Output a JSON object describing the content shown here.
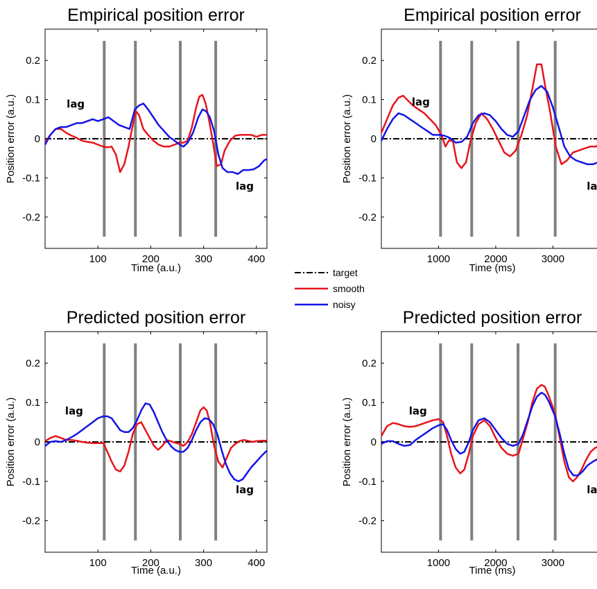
{
  "legend": {
    "entries": [
      {
        "label": "target",
        "color": "#000000",
        "dash": "dashdot"
      },
      {
        "label": "smooth",
        "color": "#e8141b"
      },
      {
        "label": "noisy",
        "color": "#1414e6"
      }
    ]
  },
  "chart_data": [
    {
      "type": "line",
      "title": "Empirical position error",
      "xlabel": "Time (a.u.)",
      "ylabel": "Position error (a.u.)",
      "xlim": [
        0,
        420
      ],
      "ylim": [
        -0.28,
        0.28
      ],
      "xticks": [
        100,
        200,
        300,
        400
      ],
      "yticks": [
        -0.2,
        -0.1,
        0,
        0.1,
        0.2
      ],
      "ytick_labels": [
        "-0.2",
        "-0.1",
        "0",
        "0.1",
        "0.2"
      ],
      "vlines": [
        112,
        171,
        256,
        323
      ],
      "vline_range": [
        -0.25,
        0.25
      ],
      "annotations": [
        {
          "text": "lag",
          "x": 58,
          "y": 0.08
        },
        {
          "text": "lag",
          "x": 378,
          "y": -0.13
        }
      ],
      "series": [
        {
          "name": "target",
          "x": [
            0,
            420
          ],
          "y": [
            0,
            0
          ]
        },
        {
          "name": "smooth",
          "x": [
            0,
            10,
            20,
            30,
            40,
            50,
            60,
            70,
            80,
            90,
            100,
            110,
            118,
            126,
            134,
            142,
            150,
            158,
            166,
            172,
            178,
            186,
            195,
            205,
            215,
            225,
            235,
            245,
            255,
            262,
            270,
            278,
            286,
            292,
            298,
            304,
            310,
            318,
            325,
            333,
            340,
            350,
            360,
            370,
            380,
            390,
            400,
            410,
            420
          ],
          "y": [
            -0.01,
            0.01,
            0.025,
            0.025,
            0.015,
            0.008,
            0.002,
            -0.005,
            -0.008,
            -0.01,
            -0.015,
            -0.02,
            -0.022,
            -0.02,
            -0.04,
            -0.085,
            -0.065,
            -0.02,
            0.035,
            0.07,
            0.06,
            0.025,
            0.01,
            -0.005,
            -0.015,
            -0.02,
            -0.02,
            -0.015,
            -0.01,
            -0.01,
            -0.005,
            0.03,
            0.08,
            0.108,
            0.112,
            0.09,
            0.05,
            -0.01,
            -0.07,
            -0.065,
            -0.03,
            -0.005,
            0.008,
            0.01,
            0.01,
            0.01,
            0.005,
            0.01,
            0.01
          ]
        },
        {
          "name": "noisy",
          "x": [
            0,
            10,
            20,
            30,
            40,
            50,
            60,
            70,
            80,
            90,
            100,
            110,
            120,
            130,
            140,
            150,
            160,
            170,
            178,
            186,
            195,
            205,
            215,
            225,
            235,
            245,
            255,
            262,
            270,
            280,
            290,
            298,
            305,
            312,
            320,
            328,
            336,
            345,
            355,
            365,
            375,
            385,
            395,
            405,
            415,
            420
          ],
          "y": [
            -0.015,
            0.01,
            0.025,
            0.03,
            0.03,
            0.035,
            0.04,
            0.04,
            0.045,
            0.05,
            0.045,
            0.05,
            0.055,
            0.045,
            0.035,
            0.03,
            0.025,
            0.075,
            0.085,
            0.09,
            0.075,
            0.055,
            0.035,
            0.02,
            0.005,
            -0.005,
            -0.015,
            -0.02,
            -0.01,
            0.015,
            0.055,
            0.075,
            0.07,
            0.055,
            0.02,
            -0.04,
            -0.075,
            -0.085,
            -0.085,
            -0.09,
            -0.08,
            -0.08,
            -0.078,
            -0.07,
            -0.055,
            -0.052
          ]
        }
      ]
    },
    {
      "type": "line",
      "title": "Empirical position error",
      "xlabel": "Time (ms)",
      "ylabel": "Position error (a.u.)",
      "xlim": [
        0,
        3880
      ],
      "ylim": [
        -0.28,
        0.28
      ],
      "xticks": [
        1000,
        2000,
        3000
      ],
      "yticks": [
        -0.2,
        -0.1,
        0,
        0.1,
        0.2
      ],
      "ytick_labels": [
        "-0.2",
        "-0.1",
        "0",
        "0.1",
        "0.2"
      ],
      "vlines": [
        1035,
        1580,
        2390,
        3040
      ],
      "vline_range": [
        -0.25,
        0.25
      ],
      "annotations": [
        {
          "text": "lag",
          "x": 690,
          "y": 0.085
        },
        {
          "text": "lag",
          "x": 3750,
          "y": -0.13
        }
      ],
      "series": [
        {
          "name": "target",
          "x": [
            0,
            3880
          ],
          "y": [
            0,
            0
          ]
        },
        {
          "name": "smooth",
          "x": [
            0,
            100,
            200,
            300,
            380,
            450,
            550,
            650,
            750,
            850,
            950,
            1050,
            1120,
            1180,
            1250,
            1320,
            1400,
            1480,
            1560,
            1650,
            1750,
            1850,
            1950,
            2050,
            2150,
            2250,
            2350,
            2450,
            2550,
            2650,
            2720,
            2800,
            2870,
            2950,
            3050,
            3150,
            3250,
            3350,
            3450,
            3550,
            3650,
            3750,
            3850,
            3880
          ],
          "y": [
            0.015,
            0.05,
            0.085,
            0.105,
            0.11,
            0.1,
            0.085,
            0.075,
            0.065,
            0.05,
            0.035,
            0.01,
            -0.02,
            -0.005,
            -0.005,
            -0.06,
            -0.075,
            -0.06,
            -0.005,
            0.04,
            0.065,
            0.05,
            0.025,
            -0.005,
            -0.035,
            -0.045,
            -0.03,
            0.01,
            0.06,
            0.135,
            0.19,
            0.19,
            0.13,
            0.07,
            -0.02,
            -0.065,
            -0.055,
            -0.035,
            -0.03,
            -0.025,
            -0.02,
            -0.02,
            -0.01,
            -0.005
          ]
        },
        {
          "name": "noisy",
          "x": [
            0,
            100,
            200,
            300,
            400,
            500,
            600,
            700,
            800,
            900,
            1000,
            1100,
            1200,
            1300,
            1400,
            1500,
            1600,
            1700,
            1800,
            1900,
            2000,
            2100,
            2200,
            2300,
            2400,
            2500,
            2600,
            2700,
            2800,
            2900,
            3000,
            3100,
            3200,
            3300,
            3400,
            3500,
            3600,
            3700,
            3800,
            3880
          ],
          "y": [
            -0.005,
            0.025,
            0.05,
            0.065,
            0.06,
            0.05,
            0.04,
            0.03,
            0.02,
            0.01,
            0.01,
            0.008,
            0.002,
            -0.01,
            -0.008,
            0.005,
            0.04,
            0.06,
            0.065,
            0.06,
            0.045,
            0.025,
            0.01,
            0.005,
            0.02,
            0.06,
            0.1,
            0.125,
            0.135,
            0.12,
            0.08,
            0.03,
            -0.02,
            -0.045,
            -0.055,
            -0.06,
            -0.065,
            -0.065,
            -0.06,
            -0.055
          ]
        }
      ]
    },
    {
      "type": "line",
      "title": "Predicted position error",
      "xlabel": "Time (a.u.)",
      "ylabel": "Position error (a.u.)",
      "xlim": [
        0,
        420
      ],
      "ylim": [
        -0.28,
        0.28
      ],
      "xticks": [
        100,
        200,
        300,
        400
      ],
      "yticks": [
        -0.2,
        -0.1,
        0,
        0.1,
        0.2
      ],
      "ytick_labels": [
        "-0.2",
        "-0.1",
        "0",
        "0.1",
        "0.2"
      ],
      "vlines": [
        112,
        171,
        256,
        323
      ],
      "vline_range": [
        -0.25,
        0.25
      ],
      "annotations": [
        {
          "text": "lag",
          "x": 55,
          "y": 0.07
        },
        {
          "text": "lag",
          "x": 378,
          "y": -0.13
        }
      ],
      "series": [
        {
          "name": "target",
          "x": [
            0,
            420
          ],
          "y": [
            0,
            0
          ]
        },
        {
          "name": "smooth",
          "x": [
            0,
            10,
            20,
            30,
            40,
            50,
            60,
            70,
            80,
            90,
            100,
            110,
            118,
            126,
            134,
            142,
            150,
            158,
            166,
            174,
            182,
            190,
            198,
            206,
            214,
            222,
            230,
            238,
            246,
            254,
            262,
            270,
            278,
            286,
            294,
            300,
            306,
            312,
            320,
            328,
            336,
            344,
            352,
            360,
            368,
            376,
            384,
            392,
            400,
            410,
            420
          ],
          "y": [
            0.002,
            0.01,
            0.015,
            0.01,
            0.005,
            0.005,
            0.003,
            0,
            -0.002,
            -0.003,
            -0.003,
            -0.003,
            -0.025,
            -0.05,
            -0.07,
            -0.075,
            -0.06,
            -0.025,
            0.02,
            0.045,
            0.05,
            0.03,
            0.01,
            -0.01,
            -0.02,
            -0.01,
            0.005,
            0.002,
            -0.002,
            -0.005,
            -0.01,
            0,
            0.02,
            0.05,
            0.08,
            0.088,
            0.08,
            0.05,
            -0.01,
            -0.05,
            -0.065,
            -0.04,
            -0.015,
            -0.005,
            0.002,
            0.005,
            0.003,
            0,
            0.002,
            0.003,
            0.003
          ]
        },
        {
          "name": "noisy",
          "x": [
            0,
            10,
            20,
            30,
            40,
            50,
            60,
            70,
            80,
            90,
            100,
            110,
            118,
            126,
            134,
            142,
            150,
            158,
            166,
            174,
            182,
            190,
            198,
            206,
            214,
            222,
            230,
            238,
            246,
            254,
            262,
            270,
            278,
            286,
            294,
            302,
            310,
            318,
            326,
            334,
            342,
            350,
            358,
            366,
            374,
            382,
            390,
            400,
            410,
            420
          ],
          "y": [
            -0.01,
            0,
            0.002,
            0,
            0.005,
            0.012,
            0.02,
            0.03,
            0.04,
            0.05,
            0.06,
            0.065,
            0.065,
            0.06,
            0.045,
            0.03,
            0.025,
            0.025,
            0.035,
            0.055,
            0.08,
            0.098,
            0.095,
            0.075,
            0.05,
            0.025,
            0.005,
            -0.01,
            -0.02,
            -0.025,
            -0.025,
            -0.015,
            0.005,
            0.03,
            0.05,
            0.06,
            0.058,
            0.045,
            0.02,
            -0.02,
            -0.055,
            -0.08,
            -0.095,
            -0.1,
            -0.095,
            -0.08,
            -0.065,
            -0.05,
            -0.035,
            -0.022
          ]
        }
      ]
    },
    {
      "type": "line",
      "title": "Predicted position error",
      "xlabel": "Time (ms)",
      "ylabel": "Position error (a.u.)",
      "xlim": [
        0,
        3880
      ],
      "ylim": [
        -0.28,
        0.28
      ],
      "xticks": [
        1000,
        2000,
        3000
      ],
      "yticks": [
        -0.2,
        -0.1,
        0,
        0.1,
        0.2
      ],
      "ytick_labels": [
        "-0.2",
        "-0.1",
        "0",
        "0.1",
        "0.2"
      ],
      "vlines": [
        1035,
        1580,
        2390,
        3040
      ],
      "vline_range": [
        -0.25,
        0.25
      ],
      "annotations": [
        {
          "text": "lag",
          "x": 640,
          "y": 0.07
        },
        {
          "text": "lag",
          "x": 3750,
          "y": -0.13
        }
      ],
      "series": [
        {
          "name": "target",
          "x": [
            0,
            3880
          ],
          "y": [
            0,
            0
          ]
        },
        {
          "name": "smooth",
          "x": [
            0,
            100,
            200,
            300,
            400,
            500,
            600,
            700,
            800,
            900,
            1000,
            1080,
            1150,
            1220,
            1300,
            1380,
            1450,
            1530,
            1600,
            1700,
            1800,
            1900,
            2000,
            2100,
            2200,
            2300,
            2400,
            2480,
            2560,
            2640,
            2720,
            2800,
            2860,
            2920,
            2980,
            3040,
            3120,
            3200,
            3280,
            3350,
            3420,
            3500,
            3580,
            3660,
            3740,
            3820,
            3880
          ],
          "y": [
            0.015,
            0.04,
            0.048,
            0.045,
            0.04,
            0.038,
            0.04,
            0.045,
            0.05,
            0.055,
            0.058,
            0.05,
            0.015,
            -0.03,
            -0.065,
            -0.08,
            -0.07,
            -0.03,
            0.015,
            0.045,
            0.055,
            0.04,
            0.01,
            -0.015,
            -0.03,
            -0.035,
            -0.03,
            0.01,
            0.05,
            0.1,
            0.135,
            0.145,
            0.14,
            0.12,
            0.095,
            0.07,
            0.01,
            -0.05,
            -0.09,
            -0.1,
            -0.09,
            -0.07,
            -0.045,
            -0.025,
            -0.015,
            -0.01,
            -0.008
          ]
        },
        {
          "name": "noisy",
          "x": [
            0,
            100,
            200,
            300,
            400,
            500,
            600,
            700,
            800,
            900,
            1000,
            1080,
            1150,
            1220,
            1300,
            1380,
            1450,
            1530,
            1600,
            1700,
            1800,
            1900,
            2000,
            2100,
            2200,
            2300,
            2400,
            2480,
            2560,
            2640,
            2720,
            2800,
            2860,
            2920,
            2980,
            3040,
            3120,
            3200,
            3280,
            3360,
            3440,
            3520,
            3600,
            3700,
            3800,
            3880
          ],
          "y": [
            -0.005,
            0.002,
            0.002,
            -0.005,
            -0.01,
            -0.008,
            0.005,
            0.015,
            0.025,
            0.035,
            0.042,
            0.045,
            0.03,
            0.005,
            -0.018,
            -0.03,
            -0.025,
            0,
            0.03,
            0.055,
            0.06,
            0.05,
            0.03,
            0.01,
            -0.005,
            -0.01,
            -0.005,
            0.02,
            0.055,
            0.09,
            0.115,
            0.125,
            0.12,
            0.105,
            0.085,
            0.065,
            0.02,
            -0.03,
            -0.07,
            -0.085,
            -0.085,
            -0.075,
            -0.06,
            -0.05,
            -0.042,
            -0.04
          ]
        }
      ]
    }
  ]
}
